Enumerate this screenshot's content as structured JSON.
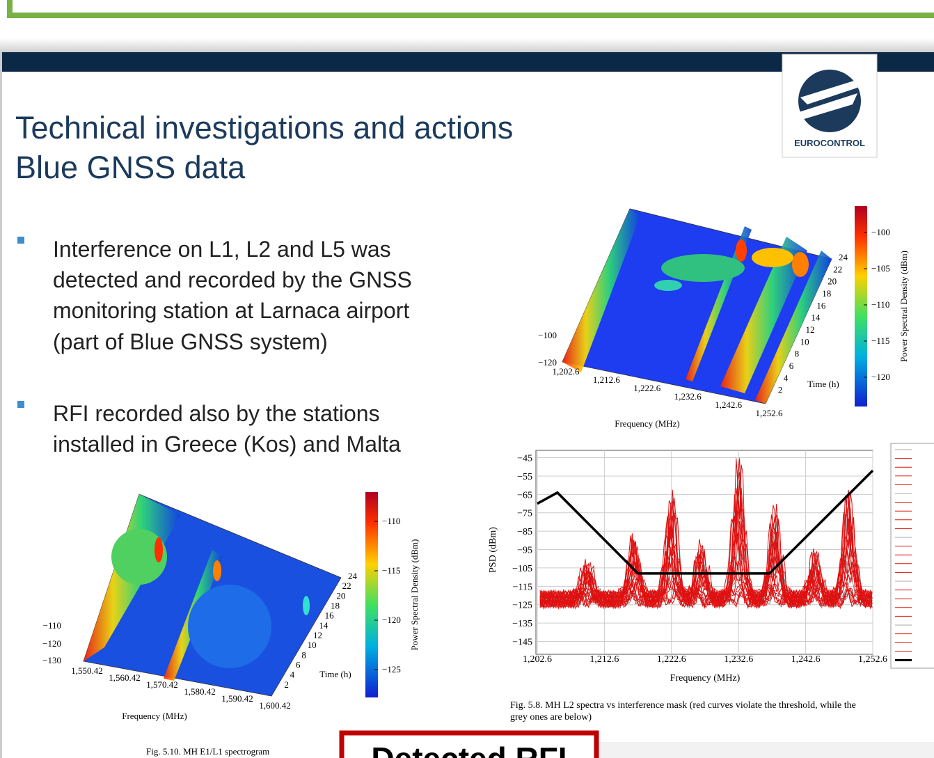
{
  "header": {
    "title": "Technical investigations and actions",
    "subtitle": "Blue GNSS data"
  },
  "logo": "EUROCONTROL",
  "bullets": [
    [
      "Interference on L1, L2 and L5 was",
      "detected and recorded by the GNSS",
      "monitoring station at Larnaca airport",
      "(part of Blue  GNSS system)"
    ],
    [
      "RFI recorded also by the stations",
      "installed in Greece (Kos) and Malta"
    ]
  ],
  "figures": {
    "l2_spectrogram": {
      "z_ticks": [
        "−100",
        "−120"
      ],
      "x_ticks": [
        "1,202.6",
        "1,212.6",
        "1,222.6",
        "1,232.6",
        "1,242.6",
        "1,252.6"
      ],
      "x_label": "Frequency (MHz)",
      "time_ticks": [
        "2",
        "4",
        "6",
        "8",
        "10",
        "12",
        "14",
        "16",
        "18",
        "20",
        "22",
        "24"
      ],
      "time_label": "Time (h)",
      "colorbar_ticks": [
        "−100",
        "−105",
        "−110",
        "−115",
        "−120"
      ],
      "colorbar_label": "Power Spectral Density (dBm)"
    },
    "psd": {
      "ylabel": "PSD (dBm)",
      "xlabel": "Frequency (MHz)",
      "xlim": [
        1202.6,
        1252.6
      ],
      "ylim": [
        -152,
        -41
      ],
      "xticks": [
        {
          "value": 1202.6,
          "label": "1,202.6"
        },
        {
          "value": 1212.6,
          "label": "1,212.6"
        },
        {
          "value": 1222.6,
          "label": "1,222.6"
        },
        {
          "value": 1232.6,
          "label": "1,232.6"
        },
        {
          "value": 1242.6,
          "label": "1,242.6"
        },
        {
          "value": 1252.6,
          "label": "1,252.6"
        }
      ],
      "yticks": [
        {
          "value": -45,
          "label": "−45"
        },
        {
          "value": -55,
          "label": "−55"
        },
        {
          "value": -65,
          "label": "−65"
        },
        {
          "value": -75,
          "label": "−75"
        },
        {
          "value": -85,
          "label": "−85"
        },
        {
          "value": -95,
          "label": "−95"
        },
        {
          "value": -105,
          "label": "−105"
        },
        {
          "value": -115,
          "label": "−115"
        },
        {
          "value": -125,
          "label": "−125"
        },
        {
          "value": -135,
          "label": "−135"
        },
        {
          "value": -145,
          "label": "−145"
        }
      ],
      "mask": {
        "color": "#000000",
        "x": [
          1202.6,
          1205.6,
          1217.6,
          1237.2,
          1252.6
        ],
        "y": [
          -70,
          -64,
          -108,
          -108,
          -52
        ]
      },
      "caption": [
        "Fig. 5.8.  MH L2 spectra vs interference mask (red curves violate the threshold, while the",
        "grey ones are below)"
      ]
    },
    "e1_spectrogram": {
      "z_ticks": [
        "−110",
        "−120",
        "−130"
      ],
      "x_ticks": [
        "1,550.42",
        "1,560.42",
        "1,570.42",
        "1,580.42",
        "1,590.42",
        "1,600.42"
      ],
      "x_label": "Frequency (MHz)",
      "time_ticks": [
        "2",
        "4",
        "6",
        "8",
        "10",
        "12",
        "14",
        "16",
        "18",
        "20",
        "22",
        "24"
      ],
      "time_label": "Time (h)",
      "colorbar_ticks": [
        "−110",
        "−115",
        "−120",
        "−125"
      ],
      "colorbar_label": "Power Spectral Density (dBm)",
      "caption": "Fig. 5.10.  MH E1/L1 spectrogram"
    }
  },
  "callout": "Detected RFI"
}
